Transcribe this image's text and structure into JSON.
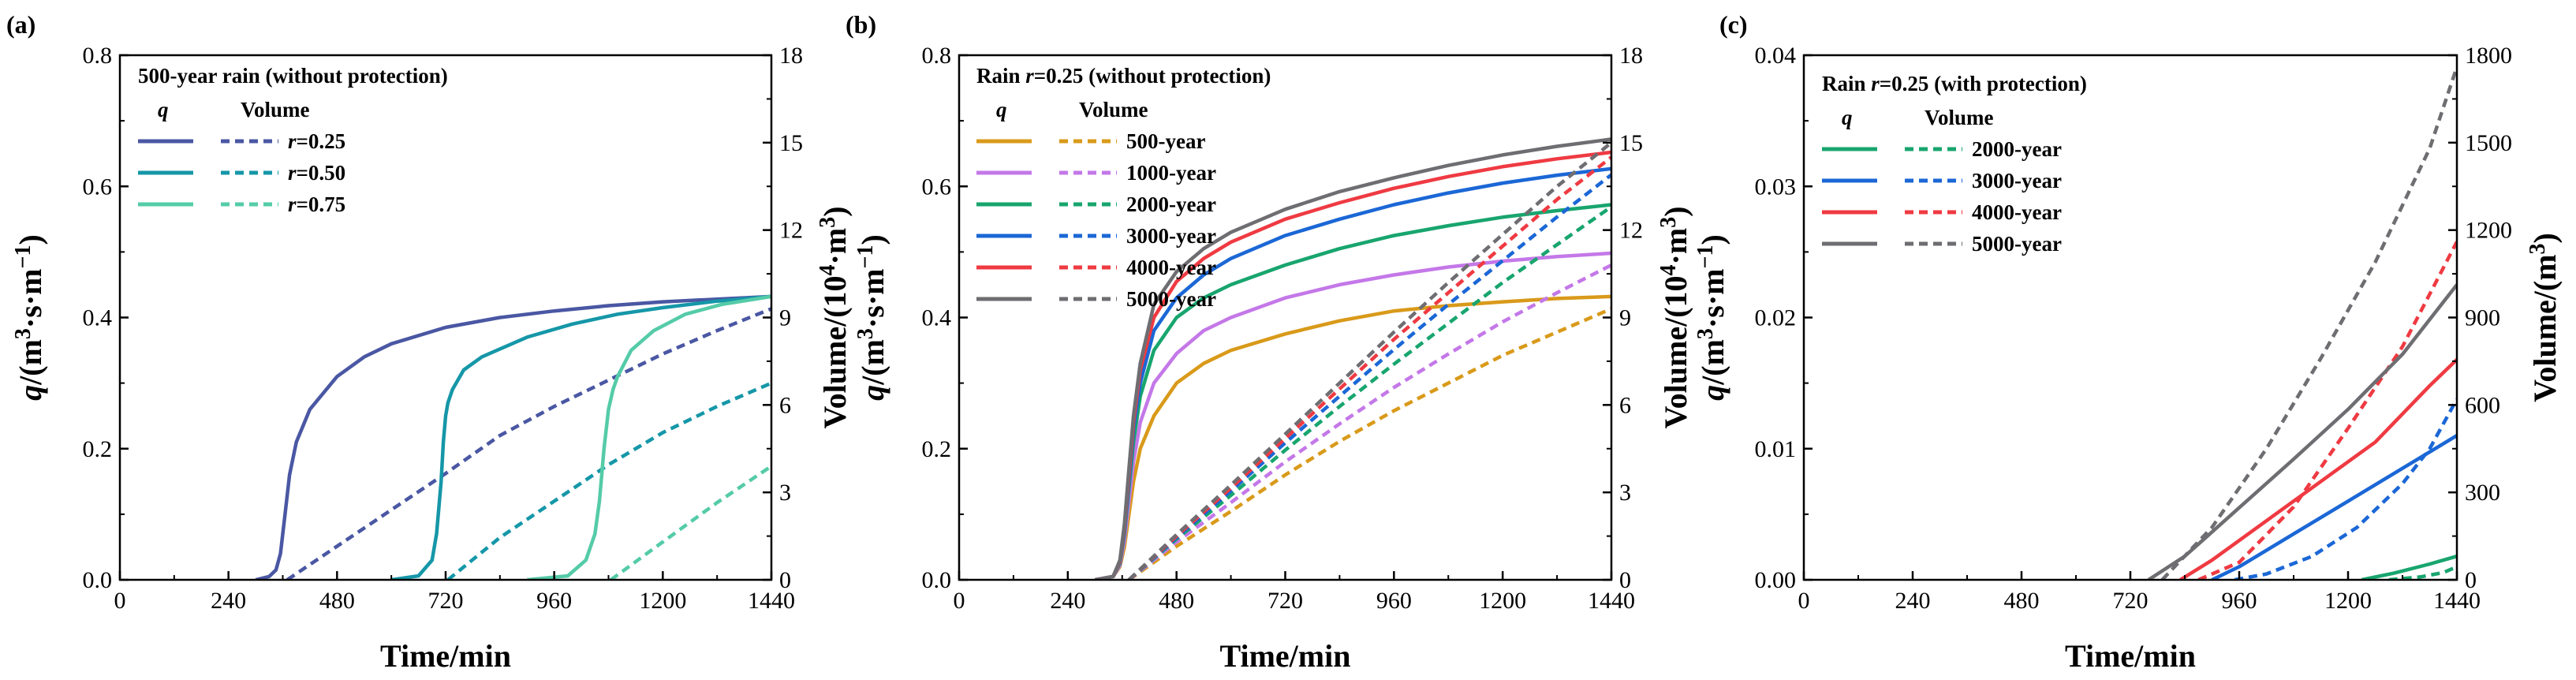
{
  "figure": {
    "colors": {
      "r025": "#4a57a3",
      "r050": "#1597a8",
      "r075": "#55cba8",
      "y500": "#d99a1a",
      "y1000": "#c478e8",
      "y2000": "#18a56e",
      "y3000": "#1b67d6",
      "y4000": "#ef3a42",
      "y5000": "#6e6e72"
    }
  },
  "chart_data": [
    {
      "type": "line",
      "panel_label": "(a)",
      "legend_title": "500-year rain (without protection)",
      "legend_head_q": "q",
      "legend_head_v": "Volume",
      "xlabel": "Time/min",
      "ylabel_left": "q/(m3·s·m-1)",
      "ylabel_right": "Volume/(104·m3)",
      "xlim": [
        0,
        1440
      ],
      "xticks": [
        0,
        240,
        480,
        720,
        960,
        1200,
        1440
      ],
      "ylim_left": [
        0,
        0.8
      ],
      "yticks_left": [
        0.0,
        0.2,
        0.4,
        0.6,
        0.8
      ],
      "ylim_right": [
        0,
        18
      ],
      "yticks_right": [
        0,
        3,
        6,
        9,
        12,
        15,
        18
      ],
      "series": [
        {
          "name": "r=0.25",
          "color_key": "r025",
          "q": {
            "x": [
              300,
              330,
              345,
              355,
              365,
              375,
              390,
              420,
              480,
              540,
              600,
              720,
              840,
              960,
              1080,
              1200,
              1320,
              1440
            ],
            "y": [
              0,
              0.005,
              0.015,
              0.04,
              0.1,
              0.16,
              0.21,
              0.26,
              0.31,
              0.34,
              0.36,
              0.385,
              0.4,
              0.41,
              0.418,
              0.424,
              0.428,
              0.432
            ]
          },
          "volume": {
            "x": [
              370,
              480,
              600,
              720,
              840,
              960,
              1080,
              1200,
              1320,
              1440
            ],
            "y": [
              0,
              1.15,
              2.4,
              3.65,
              4.95,
              5.95,
              6.85,
              7.75,
              8.55,
              9.3
            ]
          }
        },
        {
          "name": "r=0.50",
          "color_key": "r050",
          "q": {
            "x": [
              600,
              660,
              690,
              700,
              710,
              715,
              720,
              725,
              735,
              760,
              800,
              900,
              1000,
              1100,
              1200,
              1320,
              1440
            ],
            "y": [
              0,
              0.006,
              0.03,
              0.07,
              0.15,
              0.21,
              0.25,
              0.27,
              0.29,
              0.32,
              0.34,
              0.37,
              0.39,
              0.405,
              0.415,
              0.425,
              0.432
            ]
          },
          "volume": {
            "x": [
              725,
              840,
              960,
              1080,
              1200,
              1320,
              1440
            ],
            "y": [
              0,
              1.45,
              2.7,
              3.95,
              5.05,
              5.95,
              6.75
            ]
          }
        },
        {
          "name": "r=0.75",
          "color_key": "r075",
          "q": {
            "x": [
              900,
              990,
              1030,
              1050,
              1060,
              1070,
              1080,
              1090,
              1100,
              1130,
              1180,
              1250,
              1330,
              1440
            ],
            "y": [
              0,
              0.006,
              0.03,
              0.07,
              0.12,
              0.2,
              0.26,
              0.29,
              0.31,
              0.35,
              0.38,
              0.405,
              0.42,
              0.432
            ]
          },
          "volume": {
            "x": [
              1085,
              1200,
              1320,
              1440
            ],
            "y": [
              0,
              1.3,
              2.65,
              3.9
            ]
          }
        }
      ]
    },
    {
      "type": "line",
      "panel_label": "(b)",
      "legend_title": "Rain r=0.25 (without protection)",
      "legend_head_q": "q",
      "legend_head_v": "Volume",
      "xlabel": "Time/min",
      "ylabel_left": "q/(m3·s·m-1)",
      "ylabel_right": "Volume/(104·m3)",
      "xlim": [
        0,
        1440
      ],
      "xticks": [
        0,
        240,
        480,
        720,
        960,
        1200,
        1440
      ],
      "ylim_left": [
        0,
        0.8
      ],
      "yticks_left": [
        0.0,
        0.2,
        0.4,
        0.6,
        0.8
      ],
      "ylim_right": [
        0,
        18
      ],
      "yticks_right": [
        0,
        3,
        6,
        9,
        12,
        15,
        18
      ],
      "series": [
        {
          "name": "500-year",
          "color_key": "y500",
          "q": {
            "x": [
              300,
              340,
              355,
              365,
              375,
              385,
              400,
              430,
              480,
              540,
              600,
              720,
              840,
              960,
              1080,
              1200,
              1320,
              1440
            ],
            "y": [
              0,
              0.005,
              0.02,
              0.05,
              0.1,
              0.15,
              0.2,
              0.25,
              0.3,
              0.33,
              0.35,
              0.375,
              0.395,
              0.41,
              0.418,
              0.424,
              0.429,
              0.432
            ]
          },
          "volume": {
            "x": [
              375,
              480,
              600,
              720,
              840,
              960,
              1080,
              1200,
              1320,
              1440
            ],
            "y": [
              0,
              1.15,
              2.35,
              3.6,
              4.75,
              5.8,
              6.75,
              7.7,
              8.5,
              9.3
            ]
          }
        },
        {
          "name": "1000-year",
          "color_key": "y1000",
          "q": {
            "x": [
              300,
              340,
              355,
              365,
              375,
              385,
              400,
              430,
              480,
              540,
              600,
              720,
              840,
              960,
              1080,
              1200,
              1320,
              1440
            ],
            "y": [
              0,
              0.005,
              0.022,
              0.06,
              0.12,
              0.18,
              0.24,
              0.3,
              0.345,
              0.38,
              0.4,
              0.43,
              0.45,
              0.465,
              0.477,
              0.486,
              0.493,
              0.498
            ]
          },
          "volume": {
            "x": [
              375,
              480,
              600,
              720,
              840,
              960,
              1080,
              1200,
              1320,
              1440
            ],
            "y": [
              0,
              1.3,
              2.65,
              4.05,
              5.35,
              6.6,
              7.75,
              8.85,
              9.85,
              10.8
            ]
          }
        },
        {
          "name": "2000-year",
          "color_key": "y2000",
          "q": {
            "x": [
              300,
              340,
              355,
              365,
              375,
              385,
              400,
              430,
              480,
              540,
              600,
              720,
              840,
              960,
              1080,
              1200,
              1320,
              1440
            ],
            "y": [
              0,
              0.005,
              0.025,
              0.07,
              0.14,
              0.21,
              0.28,
              0.35,
              0.4,
              0.43,
              0.45,
              0.48,
              0.505,
              0.525,
              0.54,
              0.553,
              0.563,
              0.572
            ]
          },
          "volume": {
            "x": [
              375,
              480,
              600,
              720,
              840,
              960,
              1080,
              1200,
              1320,
              1440
            ],
            "y": [
              0,
              1.4,
              2.9,
              4.45,
              5.95,
              7.4,
              8.8,
              10.2,
              11.5,
              12.8
            ]
          }
        },
        {
          "name": "3000-year",
          "color_key": "y3000",
          "q": {
            "x": [
              300,
              340,
              355,
              365,
              375,
              385,
              400,
              430,
              480,
              540,
              600,
              720,
              840,
              960,
              1080,
              1200,
              1320,
              1440
            ],
            "y": [
              0,
              0.005,
              0.027,
              0.075,
              0.15,
              0.23,
              0.3,
              0.38,
              0.43,
              0.465,
              0.49,
              0.525,
              0.55,
              0.572,
              0.59,
              0.605,
              0.617,
              0.627
            ]
          },
          "volume": {
            "x": [
              375,
              480,
              600,
              720,
              840,
              960,
              1080,
              1200,
              1320,
              1440
            ],
            "y": [
              0,
              1.45,
              3.05,
              4.7,
              6.3,
              7.9,
              9.45,
              10.95,
              12.45,
              13.9
            ]
          }
        },
        {
          "name": "4000-year",
          "color_key": "y4000",
          "q": {
            "x": [
              300,
              340,
              355,
              365,
              375,
              385,
              400,
              430,
              480,
              540,
              600,
              720,
              840,
              960,
              1080,
              1200,
              1320,
              1440
            ],
            "y": [
              0,
              0.005,
              0.028,
              0.08,
              0.16,
              0.24,
              0.32,
              0.4,
              0.455,
              0.49,
              0.515,
              0.55,
              0.575,
              0.597,
              0.615,
              0.63,
              0.642,
              0.652
            ]
          },
          "volume": {
            "x": [
              375,
              480,
              600,
              720,
              840,
              960,
              1080,
              1200,
              1320,
              1440
            ],
            "y": [
              0,
              1.5,
              3.15,
              4.85,
              6.55,
              8.25,
              9.85,
              11.45,
              13.05,
              14.5
            ]
          }
        },
        {
          "name": "5000-year",
          "color_key": "y5000",
          "q": {
            "x": [
              300,
              340,
              355,
              365,
              375,
              385,
              400,
              430,
              480,
              540,
              600,
              720,
              840,
              960,
              1080,
              1200,
              1320,
              1440
            ],
            "y": [
              0,
              0.005,
              0.03,
              0.085,
              0.17,
              0.25,
              0.33,
              0.42,
              0.47,
              0.505,
              0.53,
              0.565,
              0.592,
              0.613,
              0.632,
              0.648,
              0.661,
              0.672
            ]
          },
          "volume": {
            "x": [
              375,
              480,
              600,
              720,
              840,
              960,
              1080,
              1200,
              1320,
              1440
            ],
            "y": [
              0,
              1.55,
              3.25,
              5.0,
              6.75,
              8.5,
              10.2,
              11.85,
              13.5,
              15.0
            ]
          }
        }
      ]
    },
    {
      "type": "line",
      "panel_label": "(c)",
      "legend_title": "Rain r=0.25 (with protection)",
      "legend_head_q": "q",
      "legend_head_v": "Volume",
      "xlabel": "Time/min",
      "ylabel_left": "q/(m3·s·m-1)",
      "ylabel_right": "Volume/(m3)",
      "xlim": [
        0,
        1440
      ],
      "xticks": [
        0,
        240,
        480,
        720,
        960,
        1200,
        1440
      ],
      "ylim_left": [
        0,
        0.04
      ],
      "yticks_left": [
        0.0,
        0.01,
        0.02,
        0.03,
        0.04
      ],
      "ylim_right": [
        0,
        1800
      ],
      "yticks_right": [
        0,
        300,
        600,
        900,
        1200,
        1500,
        1800
      ],
      "series": [
        {
          "name": "2000-year",
          "color_key": "y2000",
          "q": {
            "x": [
              1230,
              1300,
              1380,
              1440
            ],
            "y": [
              0,
              0.0005,
              0.0012,
              0.0018
            ]
          },
          "volume": {
            "x": [
              1290,
              1360,
              1410,
              1440
            ],
            "y": [
              0,
              10,
              25,
              45
            ]
          }
        },
        {
          "name": "3000-year",
          "color_key": "y3000",
          "q": {
            "x": [
              900,
              960,
              1080,
              1200,
              1320,
              1440
            ],
            "y": [
              0,
              0.001,
              0.0035,
              0.006,
              0.0085,
              0.011
            ]
          },
          "volume": {
            "x": [
              950,
              1020,
              1120,
              1220,
              1320,
              1380,
              1440
            ],
            "y": [
              0,
              20,
              80,
              180,
              330,
              450,
              620
            ]
          }
        },
        {
          "name": "4000-year",
          "color_key": "y4000",
          "q": {
            "x": [
              830,
              900,
              1020,
              1140,
              1260,
              1380,
              1440
            ],
            "y": [
              0,
              0.0015,
              0.0045,
              0.0075,
              0.0105,
              0.0148,
              0.0168
            ]
          },
          "volume": {
            "x": [
              870,
              960,
              1080,
              1200,
              1320,
              1380,
              1440
            ],
            "y": [
              0,
              60,
              250,
              520,
              800,
              980,
              1160
            ]
          }
        },
        {
          "name": "5000-year",
          "color_key": "y5000",
          "q": {
            "x": [
              760,
              840,
              960,
              1080,
              1200,
              1320,
              1440
            ],
            "y": [
              0,
              0.0018,
              0.0055,
              0.0092,
              0.013,
              0.0172,
              0.0225
            ]
          },
          "volume": {
            "x": [
              790,
              900,
              1020,
              1140,
              1260,
              1380,
              1440
            ],
            "y": [
              0,
              180,
              450,
              760,
              1090,
              1480,
              1760
            ]
          }
        }
      ]
    }
  ]
}
